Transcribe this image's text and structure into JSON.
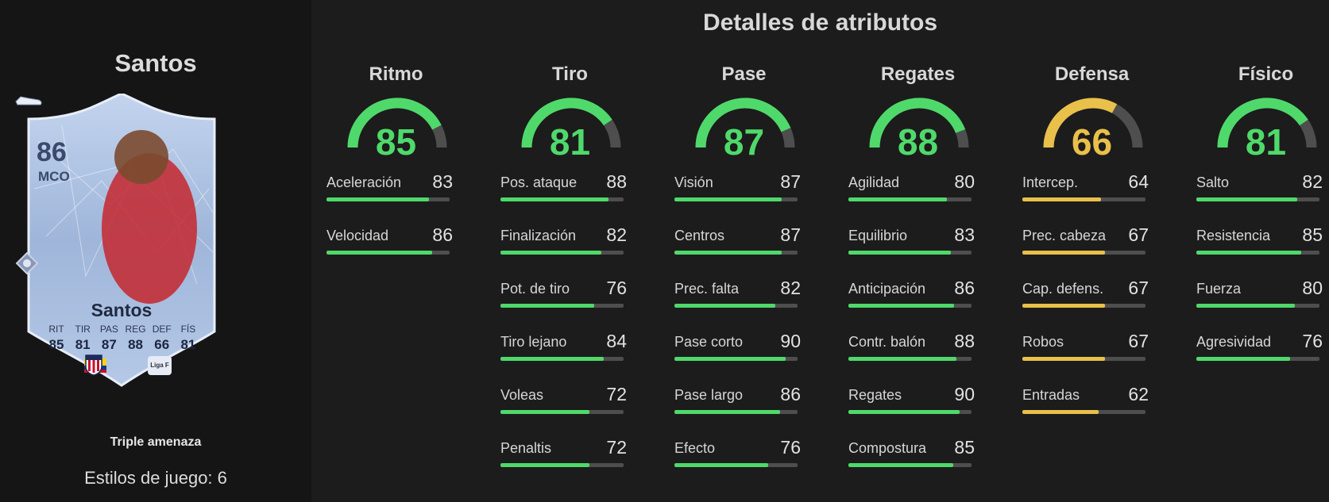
{
  "player": {
    "name": "Santos",
    "rating": "86",
    "position": "MCO",
    "card_name": "Santos",
    "card_stats": [
      {
        "label": "RIT",
        "value": "85"
      },
      {
        "label": "TIR",
        "value": "81"
      },
      {
        "label": "PAS",
        "value": "87"
      },
      {
        "label": "REG",
        "value": "88"
      },
      {
        "label": "DEF",
        "value": "66"
      },
      {
        "label": "FÍS",
        "value": "81"
      }
    ],
    "league_badge": "Liga F"
  },
  "playstyle": "Triple amenaza",
  "styles_count": "Estilos de juego: 6",
  "title": "Detalles de atributos",
  "colors": {
    "green": "#4fd96b",
    "yellow": "#e9c04a",
    "track": "#4e4e4e"
  },
  "categories": [
    {
      "name": "Ritmo",
      "value": "85",
      "color": "green",
      "attributes": [
        {
          "label": "Aceleración",
          "value": "83"
        },
        {
          "label": "Velocidad",
          "value": "86"
        }
      ]
    },
    {
      "name": "Tiro",
      "value": "81",
      "color": "green",
      "attributes": [
        {
          "label": "Pos. ataque",
          "value": "88"
        },
        {
          "label": "Finalización",
          "value": "82"
        },
        {
          "label": "Pot. de tiro",
          "value": "76"
        },
        {
          "label": "Tiro lejano",
          "value": "84"
        },
        {
          "label": "Voleas",
          "value": "72"
        },
        {
          "label": "Penaltis",
          "value": "72"
        }
      ]
    },
    {
      "name": "Pase",
      "value": "87",
      "color": "green",
      "attributes": [
        {
          "label": "Visión",
          "value": "87"
        },
        {
          "label": "Centros",
          "value": "87"
        },
        {
          "label": "Prec. falta",
          "value": "82"
        },
        {
          "label": "Pase corto",
          "value": "90"
        },
        {
          "label": "Pase largo",
          "value": "86"
        },
        {
          "label": "Efecto",
          "value": "76"
        }
      ]
    },
    {
      "name": "Regates",
      "value": "88",
      "color": "green",
      "attributes": [
        {
          "label": "Agilidad",
          "value": "80"
        },
        {
          "label": "Equilibrio",
          "value": "83"
        },
        {
          "label": "Anticipación",
          "value": "86"
        },
        {
          "label": "Contr. balón",
          "value": "88"
        },
        {
          "label": "Regates",
          "value": "90"
        },
        {
          "label": "Compostura",
          "value": "85"
        }
      ]
    },
    {
      "name": "Defensa",
      "value": "66",
      "color": "yellow",
      "attributes": [
        {
          "label": "Intercep.",
          "value": "64"
        },
        {
          "label": "Prec. cabeza",
          "value": "67"
        },
        {
          "label": "Cap. defens.",
          "value": "67"
        },
        {
          "label": "Robos",
          "value": "67"
        },
        {
          "label": "Entradas",
          "value": "62"
        }
      ]
    },
    {
      "name": "Físico",
      "value": "81",
      "color": "green",
      "attributes": [
        {
          "label": "Salto",
          "value": "82"
        },
        {
          "label": "Resistencia",
          "value": "85"
        },
        {
          "label": "Fuerza",
          "value": "80"
        },
        {
          "label": "Agresividad",
          "value": "76"
        }
      ]
    }
  ]
}
